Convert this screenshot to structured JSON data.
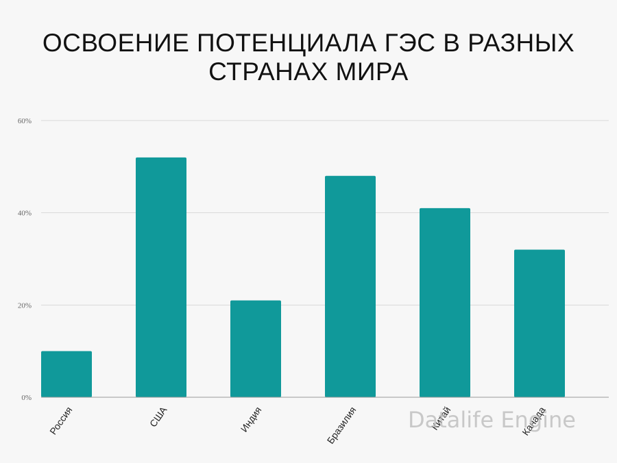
{
  "chart_data": {
    "type": "bar",
    "title_lines": [
      "ОСВОЕНИЕ ПОТЕНЦИАЛА ГЭС В РАЗНЫХ",
      "СТРАНАХ МИРА"
    ],
    "categories": [
      "Россия",
      "США",
      "Индия",
      "Бразилия",
      "Китай",
      "Канада"
    ],
    "values": [
      10,
      52,
      21,
      48,
      41,
      32
    ],
    "y_ticks": [
      "0%",
      "20%",
      "40%",
      "60%"
    ],
    "ylim": [
      0,
      60
    ],
    "grid": true,
    "colors": {
      "bar": "#10999a",
      "grid": "#d9d9d9",
      "axis": "#999999"
    }
  },
  "watermark": "Datalife Engine"
}
